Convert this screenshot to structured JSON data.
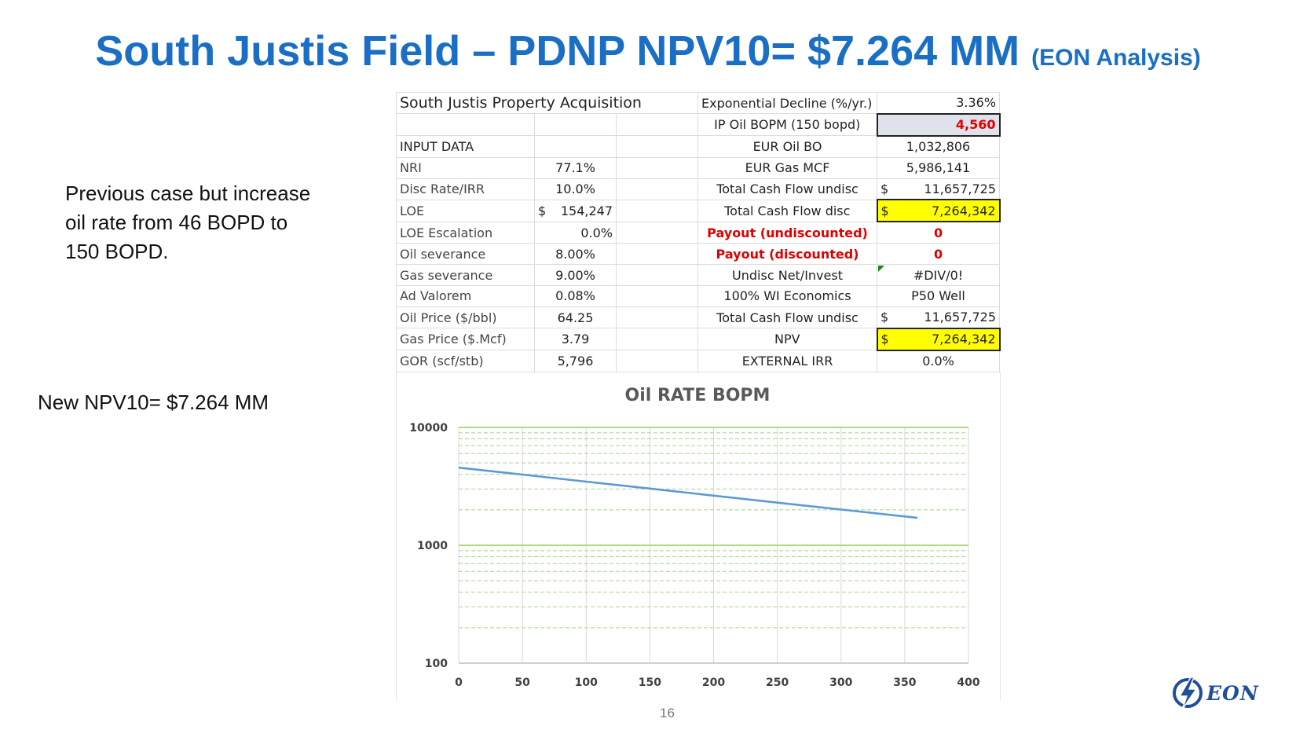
{
  "slide": {
    "title_main": "South Justis Field – PDNP NPV10= $7.264 MM",
    "title_sub": "(EON Analysis)",
    "note1": "Previous case but increase oil rate from 46 BOPD to 150 BOPD.",
    "note2": "New NPV10= $7.264 MM",
    "page_number": "16",
    "logo_text": "EON"
  },
  "sheet": {
    "title": "South Justis Property Acquisition",
    "input_header": "INPUT DATA",
    "inputs": [
      {
        "label": "NRI",
        "value": "77.1%"
      },
      {
        "label": "Disc Rate/IRR",
        "value": "10.0%"
      },
      {
        "label": "LOE",
        "currency": "$",
        "value": "154,247"
      },
      {
        "label": "LOE Escalation",
        "value": "0.0%"
      },
      {
        "label": "Oil severance",
        "value": "8.00%"
      },
      {
        "label": "Gas severance",
        "value": "9.00%"
      },
      {
        "label": "Ad Valorem",
        "value": "0.08%"
      },
      {
        "label": "Oil Price ($/bbl)",
        "value": "64.25"
      },
      {
        "label": "Gas Price ($.Mcf)",
        "value": "3.79"
      },
      {
        "label": "GOR (scf/stb)",
        "value": "5,796"
      }
    ],
    "results": [
      {
        "label": "Exponential Decline (%/yr.)",
        "value": "3.36%"
      },
      {
        "label": "IP Oil BOPM (150 bopd)",
        "value": "4,560"
      },
      {
        "label": "EUR Oil BO",
        "value": "1,032,806"
      },
      {
        "label": "EUR Gas  MCF",
        "value": "5,986,141"
      },
      {
        "label": "Total Cash Flow undisc",
        "currency": "$",
        "value": "11,657,725"
      },
      {
        "label": "Total Cash Flow disc",
        "currency": "$",
        "value": "7,264,342"
      },
      {
        "label": "Payout (undiscounted)",
        "value": "0"
      },
      {
        "label": "Payout (discounted)",
        "value": "0"
      },
      {
        "label": "Undisc Net/Invest",
        "value": "#DIV/0!"
      },
      {
        "label": "100% WI Economics",
        "value": "P50 Well"
      },
      {
        "label": "Total Cash Flow undisc",
        "currency": "$",
        "value": "11,657,725"
      },
      {
        "label": "NPV",
        "currency": "$",
        "value": "7,264,342"
      },
      {
        "label": "EXTERNAL IRR",
        "value": "0.0%"
      }
    ]
  },
  "colors": {
    "title_blue": "#1a6fc4",
    "highlight_yellow": "#ffff00",
    "alert_red": "#e00000",
    "series_blue": "#5b9bd5",
    "grid_green": "#92d050"
  },
  "chart_data": {
    "type": "line",
    "title": "Oil RATE BOPM",
    "x_scale": "linear",
    "y_scale": "log",
    "xlim": [
      0,
      400
    ],
    "ylim": [
      100,
      10000
    ],
    "x_ticks": [
      "0",
      "50",
      "100",
      "150",
      "200",
      "250",
      "300",
      "350",
      "400"
    ],
    "y_ticks": [
      "100",
      "1000",
      "10000"
    ],
    "xlabel": "",
    "ylabel": "",
    "series": [
      {
        "name": "Oil RATE BOPM",
        "x": [
          0,
          50,
          100,
          150,
          200,
          250,
          300,
          360
        ],
        "y": [
          4560,
          3980,
          3470,
          3030,
          2640,
          2300,
          2010,
          1710
        ]
      }
    ]
  }
}
